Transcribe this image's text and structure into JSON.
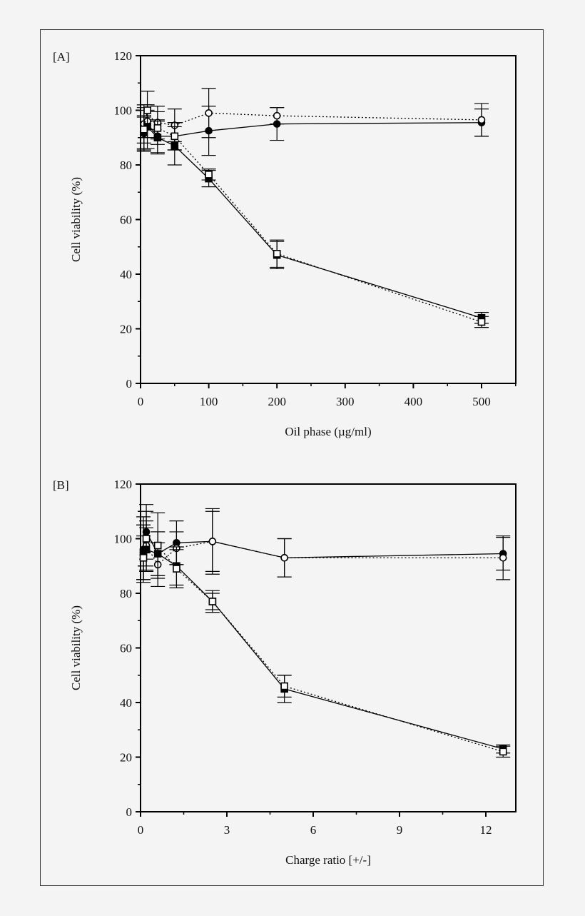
{
  "chart_data": [
    {
      "type": "line",
      "panel_label": "[A]",
      "xlabel": "Oil phase (µg/ml)",
      "ylabel": "Cell viability (%)",
      "xlim": [
        0,
        550
      ],
      "ylim": [
        0,
        120
      ],
      "xticks": [
        0,
        100,
        200,
        300,
        400,
        500
      ],
      "yticks": [
        0,
        20,
        40,
        60,
        80,
        100,
        120
      ],
      "grid": false,
      "x": [
        5,
        10,
        25,
        50,
        100,
        200,
        500
      ],
      "series": [
        {
          "marker": "filled-circle",
          "line": "solid",
          "values": [
            91.5,
            95,
            90.5,
            90.5,
            92.5,
            95,
            95.5
          ],
          "errors": [
            6,
            5,
            6,
            5,
            9,
            6,
            5
          ]
        },
        {
          "marker": "open-circle",
          "line": "dotted",
          "values": [
            95,
            96,
            95.5,
            94.5,
            99,
            98,
            96.5
          ],
          "errors": [
            7,
            6,
            6,
            6,
            9,
            3,
            6
          ]
        },
        {
          "marker": "filled-square",
          "line": "solid",
          "values": [
            92,
            94,
            90,
            87,
            75,
            47,
            24
          ],
          "errors": [
            6,
            8,
            6,
            7,
            3,
            5,
            2
          ]
        },
        {
          "marker": "open-square",
          "line": "dotted",
          "values": [
            93,
            100,
            93.5,
            90.5,
            76.5,
            47.5,
            22.5
          ],
          "errors": [
            8,
            7,
            6,
            5,
            2,
            5,
            2
          ]
        }
      ]
    },
    {
      "type": "line",
      "panel_label": "[B]",
      "xlabel": "Charge ratio [+/-]",
      "ylabel": "Cell viability (%)",
      "xlim": [
        0,
        13
      ],
      "ylim": [
        0,
        120
      ],
      "xticks": [
        0,
        3,
        6,
        9,
        12
      ],
      "yticks": [
        0,
        20,
        40,
        60,
        80,
        100,
        120
      ],
      "grid": false,
      "x": [
        0.1,
        0.2,
        0.6,
        1.25,
        2.5,
        5,
        12.6
      ],
      "series": [
        {
          "marker": "filled-circle",
          "line": "solid",
          "values": [
            96,
            102.5,
            94.5,
            98.5,
            99,
            93,
            94.5
          ],
          "errors": [
            12,
            10,
            8,
            8,
            11,
            7,
            6
          ]
        },
        {
          "marker": "open-circle",
          "line": "dotted",
          "values": [
            95,
            97.5,
            90.5,
            96.5,
            99,
            93,
            93
          ],
          "errors": [
            10,
            9,
            8,
            6,
            12,
            7,
            8
          ]
        },
        {
          "marker": "filled-square",
          "line": "solid",
          "values": [
            95,
            96,
            94.5,
            90,
            77,
            45,
            23
          ],
          "errors": [
            10,
            8,
            8,
            7,
            4,
            5,
            1.5
          ]
        },
        {
          "marker": "open-square",
          "line": "dotted",
          "values": [
            93,
            100,
            97.5,
            89,
            77,
            46,
            22
          ],
          "errors": [
            8,
            10,
            12,
            7,
            3,
            4,
            2
          ]
        }
      ]
    }
  ]
}
